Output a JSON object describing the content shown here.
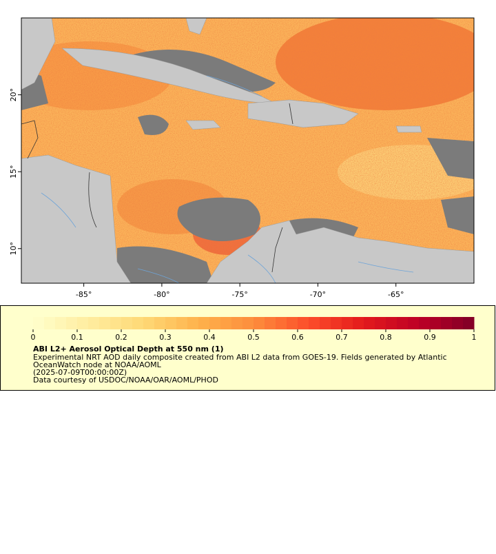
{
  "chart_data": {
    "type": "map",
    "xlim": [
      -89,
      -60
    ],
    "ylim": [
      7.75,
      25
    ],
    "xticks": [
      {
        "value": -85,
        "label": "-85°"
      },
      {
        "value": -80,
        "label": "-80°"
      },
      {
        "value": -75,
        "label": "-75°"
      },
      {
        "value": -70,
        "label": "-70°"
      },
      {
        "value": -65,
        "label": "-65°"
      }
    ],
    "yticks": [
      {
        "value": 10,
        "label": "10°"
      },
      {
        "value": 15,
        "label": "15°"
      },
      {
        "value": 20,
        "label": "20°"
      }
    ],
    "colorbar": {
      "lim": [
        0,
        1
      ],
      "ticks": [
        0,
        0.1,
        0.2,
        0.3,
        0.4,
        0.5,
        0.6,
        0.7,
        0.8,
        0.9,
        1
      ],
      "steps": 40,
      "colors": [
        "#ffffcc",
        "#ffeda0",
        "#fed976",
        "#feb24c",
        "#fd8d3c",
        "#fc4e2a",
        "#e31a1c",
        "#bd0026",
        "#800026"
      ]
    },
    "title": "ABI L2+ Aerosol Optical Depth at 550 nm (1)",
    "notes": [
      "Experimental NRT AOD daily composite created from ABI L2 data from GOES-19. Fields generated by Atlantic",
      "OceanWatch node at NOAA/AOML",
      "(2025-07-09T00:00:00Z)",
      "Data courtesy of USDOC/NOAA/OAR/AOML/PHOD"
    ]
  }
}
